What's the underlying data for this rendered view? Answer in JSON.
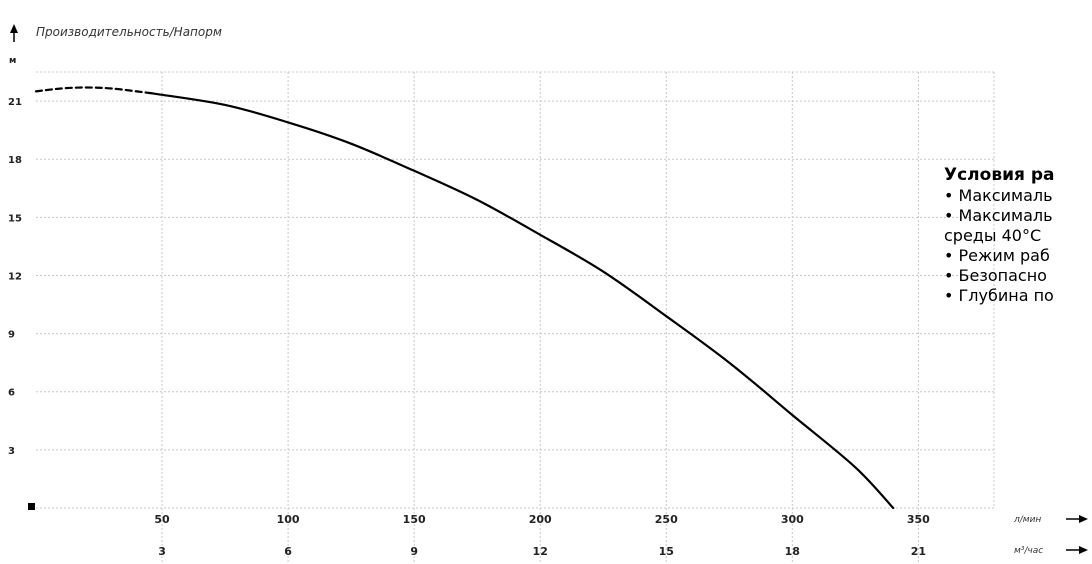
{
  "chart_data": {
    "type": "line",
    "title": "Производительность/Напорм",
    "y_unit": "м",
    "x_units": [
      "л/мин",
      "м³/час"
    ],
    "x_ticks_lpm": [
      "50",
      "100",
      "150",
      "200",
      "250",
      "300",
      "350"
    ],
    "x_ticks_m3h": [
      "3",
      "6",
      "9",
      "12",
      "15",
      "18",
      "21"
    ],
    "y_ticks": [
      "3",
      "6",
      "9",
      "12",
      "15",
      "18",
      "21"
    ],
    "xlim": [
      0,
      380
    ],
    "ylim": [
      0,
      22.5
    ],
    "grid": true,
    "series": [
      {
        "style": "dashed",
        "x": [
          0,
          10,
          20,
          30,
          40,
          46
        ],
        "y": [
          21.5,
          21.65,
          21.7,
          21.65,
          21.5,
          21.4
        ]
      },
      {
        "style": "solid",
        "x": [
          46,
          75,
          100,
          125,
          150,
          175,
          200,
          225,
          250,
          275,
          300,
          325,
          340
        ],
        "y": [
          21.4,
          20.8,
          19.9,
          18.8,
          17.4,
          15.9,
          14.1,
          12.2,
          9.9,
          7.5,
          4.8,
          2.1,
          0
        ]
      }
    ]
  },
  "conditions": {
    "heading": "Условия ра",
    "lines": [
      "• Максималь",
      "• Максималь",
      "среды 40°С",
      "• Режим раб",
      "• Безопасно",
      "• Глубина по"
    ]
  },
  "colors": {
    "curve": "#000000",
    "grid": "#c8c8c8",
    "axis": "#000000"
  }
}
